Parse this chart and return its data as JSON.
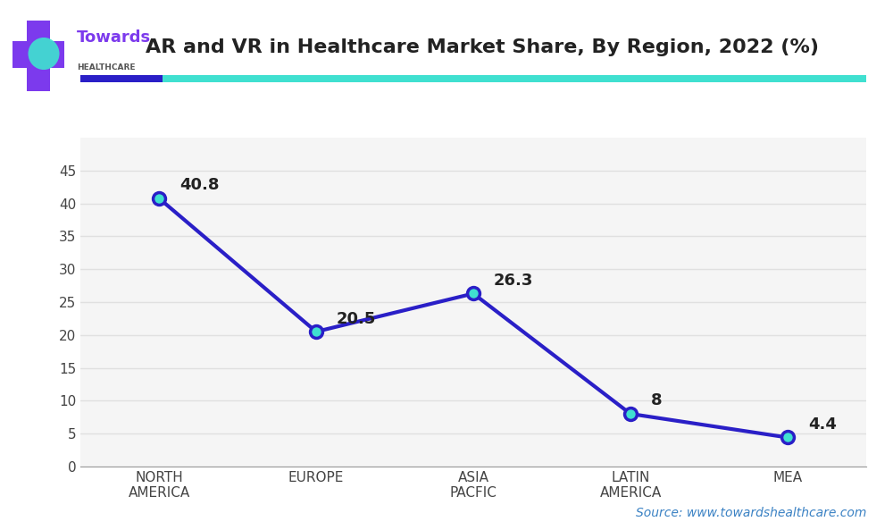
{
  "title": "AR and VR in Healthcare Market Share, By Region, 2022 (%)",
  "categories": [
    "NORTH\nAMERICA",
    "EUROPE",
    "ASIA\nPACFIC",
    "LATIN\nAMERICA",
    "MEA"
  ],
  "values": [
    40.8,
    20.5,
    26.3,
    8,
    4.4
  ],
  "line_color": "#2a1fc7",
  "marker_face_color": "#40e0d0",
  "marker_edge_color": "#2a1fc7",
  "marker_size": 10,
  "line_width": 3,
  "ylim": [
    0,
    50
  ],
  "yticks": [
    0,
    5,
    10,
    15,
    20,
    25,
    30,
    35,
    40,
    45
  ],
  "grid_color": "#e0e0e0",
  "background_color": "#ffffff",
  "title_fontsize": 16,
  "tick_fontsize": 11,
  "annotation_fontsize": 13,
  "source_text": "Source: www.towardshealthcare.com",
  "source_color": "#3b82c4",
  "accent_bar_color1": "#2a1fc7",
  "accent_bar_color2": "#40e0d0",
  "logo_text1": "Towards",
  "logo_text2": "HEALTHCARE",
  "logo_purple": "#7c3aed",
  "logo_teal": "#40e0d0"
}
